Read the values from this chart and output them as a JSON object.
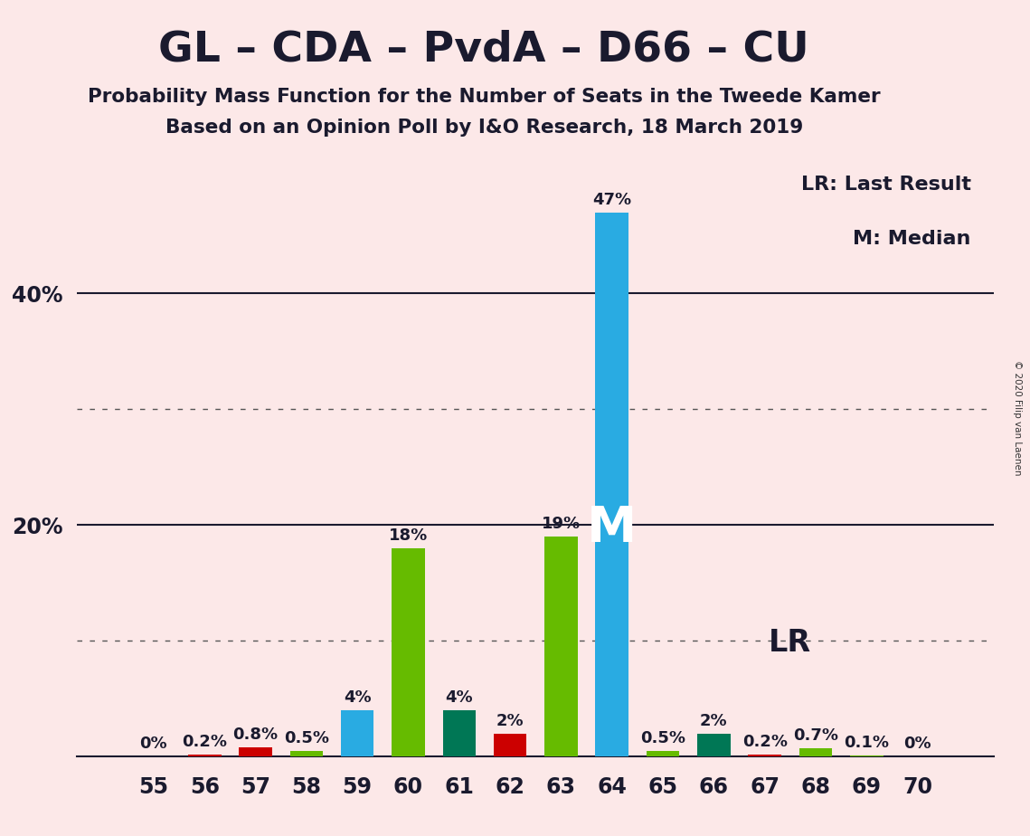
{
  "title": "GL – CDA – PvdA – D66 – CU",
  "subtitle1": "Probability Mass Function for the Number of Seats in the Tweede Kamer",
  "subtitle2": "Based on an Opinion Poll by I&O Research, 18 March 2019",
  "copyright": "© 2020 Filip van Laenen",
  "legend_lr": "LR: Last Result",
  "legend_m": "M: Median",
  "seats": [
    55,
    56,
    57,
    58,
    59,
    60,
    61,
    62,
    63,
    64,
    65,
    66,
    67,
    68,
    69,
    70
  ],
  "values": [
    0.0,
    0.2,
    0.8,
    0.5,
    4.0,
    18.0,
    4.0,
    2.0,
    19.0,
    47.0,
    0.5,
    2.0,
    0.2,
    0.7,
    0.1,
    0.0
  ],
  "labels": [
    "0%",
    "0.2%",
    "0.8%",
    "0.5%",
    "4%",
    "18%",
    "4%",
    "2%",
    "19%",
    "47%",
    "0.5%",
    "2%",
    "0.2%",
    "0.7%",
    "0.1%",
    "0%"
  ],
  "bar_colors": [
    "#29abe2",
    "#cc0000",
    "#cc0000",
    "#66bb00",
    "#29abe2",
    "#66bb00",
    "#007755",
    "#cc0000",
    "#66bb00",
    "#29abe2",
    "#66bb00",
    "#007755",
    "#cc0000",
    "#66bb00",
    "#66bb00",
    "#29abe2"
  ],
  "median_seat": 64,
  "lr_seat": 67,
  "background_color": "#fce8e8",
  "ylim": [
    0,
    52
  ],
  "solid_lines": [
    20,
    40
  ],
  "dotted_lines": [
    10,
    30
  ],
  "ytick_positions": [
    20,
    40
  ],
  "ytick_labels": [
    "20%",
    "40%"
  ]
}
